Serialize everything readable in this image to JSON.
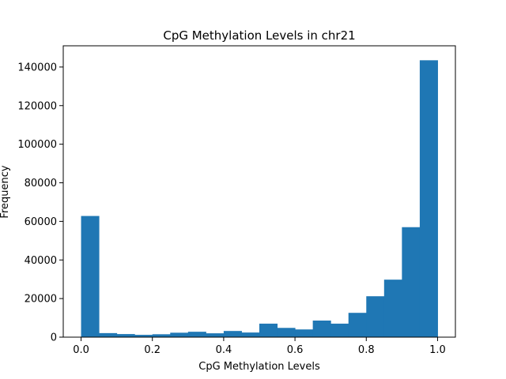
{
  "chart_data": {
    "type": "bar",
    "title": "CpG Methylation Levels in chr21",
    "xlabel": "CpG Methylation Levels",
    "ylabel": "Frequency",
    "xlim": [
      -0.05,
      1.05
    ],
    "ylim": [
      0,
      151000
    ],
    "xticks": [
      0.0,
      0.2,
      0.4,
      0.6,
      0.8,
      1.0
    ],
    "xtick_labels": [
      "0.0",
      "0.2",
      "0.4",
      "0.6",
      "0.8",
      "1.0"
    ],
    "yticks": [
      0,
      20000,
      40000,
      60000,
      80000,
      100000,
      120000,
      140000
    ],
    "ytick_labels": [
      "0",
      "20000",
      "40000",
      "60000",
      "80000",
      "100000",
      "120000",
      "140000"
    ],
    "bin_edges": [
      0.0,
      0.05,
      0.1,
      0.15,
      0.2,
      0.25,
      0.3,
      0.35,
      0.4,
      0.45,
      0.5,
      0.55,
      0.6,
      0.65,
      0.7,
      0.75,
      0.8,
      0.85,
      0.9,
      0.95,
      1.0
    ],
    "values": [
      62800,
      2100,
      1600,
      1200,
      1500,
      2300,
      2800,
      2000,
      3200,
      2400,
      7000,
      4800,
      4000,
      8600,
      7000,
      12600,
      21200,
      29800,
      57000,
      143500
    ],
    "bar_color": "#1f77b4",
    "grid": false
  }
}
